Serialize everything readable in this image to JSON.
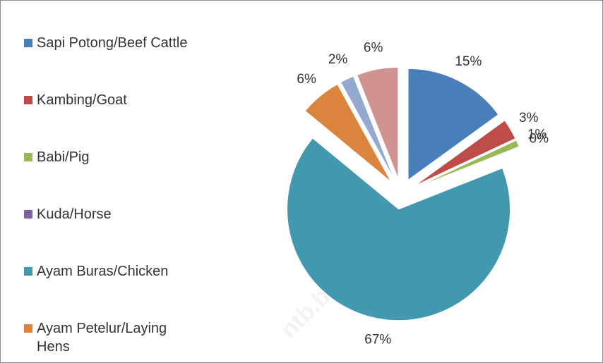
{
  "chart_data": {
    "type": "pie",
    "categories": [
      "Sapi Potong/Beef Cattle",
      "Kambing/Goat",
      "Babi/Pig",
      "Kuda/Horse",
      "Ayam Buras/Chicken",
      "Ayam Petelur/Laying Hens",
      null,
      null
    ],
    "values": [
      15,
      3,
      1,
      0,
      67,
      6,
      2,
      6
    ],
    "value_labels": [
      "15%",
      "3%",
      "1%",
      "0%",
      "67%",
      "6%",
      "2%",
      "6%"
    ],
    "colors": [
      "#4a7ebb",
      "#be4b48",
      "#98b954",
      "#7d60a0",
      "#4198af",
      "#db843d",
      "#93a9cf",
      "#d19392"
    ],
    "legend": "left",
    "watermark": "ntb.bps.go.id"
  }
}
